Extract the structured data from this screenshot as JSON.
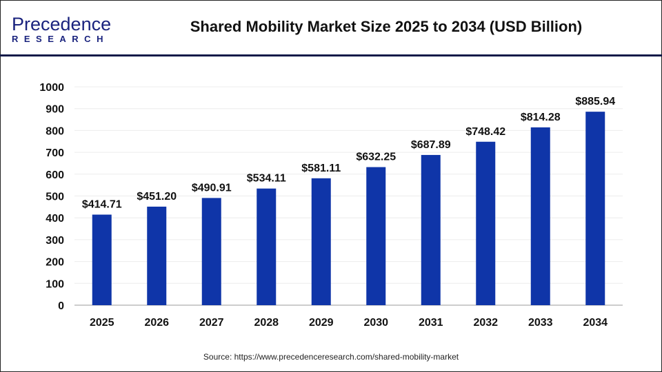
{
  "logo": {
    "line1": "Precedence",
    "line2": "RESEARCH"
  },
  "title": "Shared Mobility Market Size 2025 to 2034 (USD Billion)",
  "source": "Source: https://www.precedenceresearch.com/shared-mobility-market",
  "colors": {
    "bar": "#0f35a8",
    "header_line": "#0e1a48"
  },
  "chart_data": {
    "type": "bar",
    "title": "Shared Mobility Market Size 2025 to 2034 (USD Billion)",
    "categories": [
      "2025",
      "2026",
      "2027",
      "2028",
      "2029",
      "2030",
      "2031",
      "2032",
      "2033",
      "2034"
    ],
    "values": [
      414.71,
      451.2,
      490.91,
      534.11,
      581.11,
      632.25,
      687.89,
      748.42,
      814.28,
      885.94
    ],
    "data_labels": [
      "$414.71",
      "$451.20",
      "$490.91",
      "$534.11",
      "$581.11",
      "$632.25",
      "$687.89",
      "$748.42",
      "$814.28",
      "$885.94"
    ],
    "ylim": [
      0,
      1000
    ],
    "yticks": [
      0,
      100,
      200,
      300,
      400,
      500,
      600,
      700,
      800,
      900,
      1000
    ],
    "grid": true,
    "xlabel": "",
    "ylabel": ""
  }
}
